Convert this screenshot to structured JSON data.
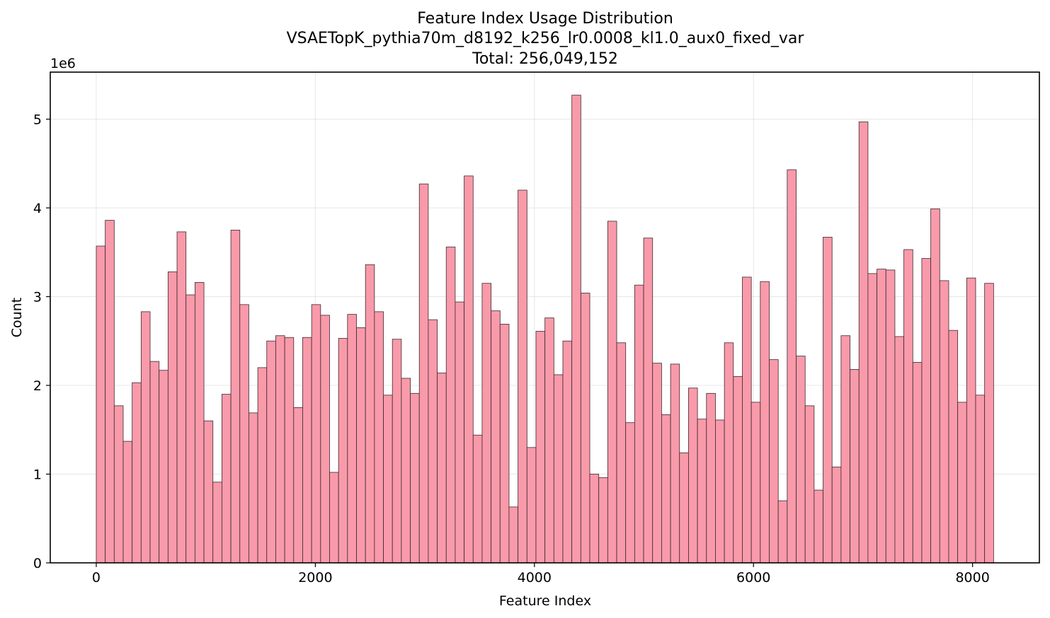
{
  "chart_data": {
    "type": "bar",
    "title_lines": [
      "Feature Index Usage Distribution",
      "VSAETopK_pythia70m_d8192_k256_lr0.0008_kl1.0_aux0_fixed_var",
      "Total: 256,049,152"
    ],
    "xlabel": "Feature Index",
    "ylabel": "Count",
    "y_offset_label": "1e6",
    "xlim": [
      -420,
      8610
    ],
    "ylim": [
      0,
      5.53
    ],
    "xticks": [
      0,
      2000,
      4000,
      6000,
      8000
    ],
    "xtick_labels": [
      "0",
      "2000",
      "4000",
      "6000",
      "8000"
    ],
    "yticks": [
      0,
      1,
      2,
      3,
      4,
      5
    ],
    "ytick_labels": [
      "0",
      "1",
      "2",
      "3",
      "4",
      "5"
    ],
    "grid": true,
    "bin_start": 0,
    "bin_width": 81.92,
    "values": [
      3.57,
      3.86,
      1.77,
      1.37,
      2.03,
      2.83,
      2.27,
      2.17,
      3.28,
      3.73,
      3.02,
      3.16,
      1.6,
      0.91,
      1.9,
      3.75,
      2.91,
      1.69,
      2.2,
      2.5,
      2.56,
      2.54,
      1.75,
      2.54,
      2.91,
      2.79,
      1.02,
      2.53,
      2.8,
      2.65,
      3.36,
      2.83,
      1.89,
      2.52,
      2.08,
      1.91,
      4.27,
      2.74,
      2.14,
      3.56,
      2.94,
      4.36,
      1.44,
      3.15,
      2.84,
      2.69,
      0.63,
      4.2,
      1.3,
      2.61,
      2.76,
      2.12,
      2.5,
      5.27,
      3.04,
      1.0,
      0.96,
      3.85,
      2.48,
      1.58,
      3.13,
      3.66,
      2.25,
      1.67,
      2.24,
      1.24,
      1.97,
      1.62,
      1.91,
      1.61,
      2.48,
      2.1,
      3.22,
      1.81,
      3.17,
      2.29,
      0.7,
      4.43,
      2.33,
      1.77,
      0.82,
      3.67,
      1.08,
      2.56,
      2.18,
      4.97,
      3.26,
      3.31,
      3.3,
      2.55,
      3.53,
      2.26,
      3.43,
      3.99,
      3.18,
      2.62,
      1.81,
      3.21,
      1.89,
      3.15
    ],
    "bar_color": "#f99aaa",
    "edge_color": "#3a2a2e"
  }
}
